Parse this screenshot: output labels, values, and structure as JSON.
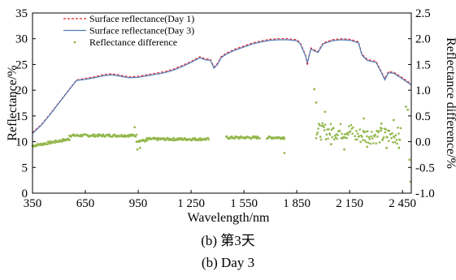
{
  "chart_data": {
    "type": "line",
    "xlabel": "Wavelength/nm",
    "ylabel": "Reflectance/%",
    "y2label": "Reflectance difference/%",
    "xlim": [
      350,
      2500
    ],
    "ylim": [
      0,
      35
    ],
    "y2lim": [
      -1.0,
      2.5
    ],
    "x_ticks": [
      350,
      650,
      950,
      1250,
      1550,
      1850,
      2150,
      2450
    ],
    "x_tick_labels": [
      "350",
      "650",
      "950",
      "1 250",
      "1 550",
      "1 850",
      "2 150",
      "2 450"
    ],
    "y_ticks": [
      0,
      5,
      10,
      15,
      20,
      25,
      30,
      35
    ],
    "y2_ticks": [
      -1.0,
      -0.5,
      0.0,
      0.5,
      1.0,
      1.5,
      2.0,
      2.5
    ],
    "y2_tick_labels": [
      "-1.0",
      "-0.5",
      "0.0",
      "0.5",
      "1.0",
      "1.5",
      "2.0",
      "2.5"
    ],
    "grid": false,
    "legend_position": "top-left",
    "series": [
      {
        "name": "Surface reflectance(Day 1)",
        "color": "#e8262b",
        "style": "dashed",
        "x": [
          350,
          400,
          450,
          500,
          550,
          600,
          650,
          700,
          750,
          800,
          850,
          900,
          950,
          1000,
          1050,
          1100,
          1150,
          1200,
          1250,
          1300,
          1330,
          1360,
          1380,
          1400,
          1420,
          1450,
          1500,
          1550,
          1600,
          1650,
          1700,
          1750,
          1800,
          1850,
          1870,
          1900,
          1910,
          1920,
          1930,
          1950,
          1970,
          2000,
          2050,
          2100,
          2150,
          2200,
          2220,
          2250,
          2300,
          2330,
          2350,
          2370,
          2400,
          2450,
          2500
        ],
        "y": [
          11.8,
          13.3,
          15.4,
          17.6,
          19.8,
          22,
          22.3,
          22.6,
          23,
          23.2,
          22.9,
          22.6,
          22.7,
          23,
          23.3,
          23.6,
          24.1,
          24.8,
          25.6,
          26.5,
          26.1,
          26,
          24.5,
          25.2,
          26.5,
          27.2,
          28,
          28.6,
          29.2,
          29.6,
          29.9,
          30,
          30,
          29.8,
          29.2,
          26.8,
          24.8,
          26.8,
          28.2,
          27.8,
          27.5,
          29.2,
          29.8,
          30,
          29.9,
          29.4,
          27,
          26,
          25.6,
          23.6,
          22.2,
          23.6,
          23.5,
          22.4,
          21.2
        ]
      },
      {
        "name": "Surface reflectance(Day 3)",
        "color": "#4f7cb8",
        "style": "solid",
        "x": [
          350,
          400,
          450,
          500,
          550,
          600,
          650,
          700,
          750,
          800,
          850,
          900,
          950,
          1000,
          1050,
          1100,
          1150,
          1200,
          1250,
          1300,
          1330,
          1360,
          1380,
          1400,
          1420,
          1450,
          1500,
          1550,
          1600,
          1650,
          1700,
          1750,
          1800,
          1850,
          1870,
          1900,
          1910,
          1920,
          1930,
          1950,
          1970,
          2000,
          2050,
          2100,
          2150,
          2200,
          2220,
          2250,
          2300,
          2330,
          2350,
          2370,
          2400,
          2450,
          2500
        ],
        "y": [
          11.6,
          13.2,
          15.3,
          17.5,
          19.7,
          21.9,
          22.1,
          22.4,
          22.8,
          23,
          22.7,
          22.4,
          22.5,
          22.8,
          23.1,
          23.4,
          23.9,
          24.6,
          25.4,
          26.3,
          25.9,
          25.8,
          24.3,
          25,
          26.3,
          27,
          27.8,
          28.4,
          29,
          29.4,
          29.7,
          29.8,
          29.8,
          29.6,
          29,
          26.6,
          25.4,
          26.6,
          28,
          27.6,
          27.3,
          29,
          29.6,
          29.8,
          29.7,
          29.2,
          26.8,
          25.8,
          25.4,
          23.4,
          22,
          23.4,
          23.3,
          22.2,
          21
        ]
      },
      {
        "name": "Reflectance difference",
        "color": "#93b84c",
        "style": "markers",
        "axis": "right",
        "segments": [
          {
            "x_start": 350,
            "x_end": 560,
            "y_start": -0.08,
            "y_end": 0.05
          },
          {
            "x_start": 560,
            "x_end": 940,
            "y_start": 0.12,
            "y_end": 0.12
          },
          {
            "x_start": 940,
            "x_end": 1000,
            "y_start": 0.02,
            "y_end": 0.02
          },
          {
            "x_start": 1000,
            "x_end": 1350,
            "y_start": 0.05,
            "y_end": 0.05
          },
          {
            "x_start": 1450,
            "x_end": 1640,
            "y_start": 0.08,
            "y_end": 0.08
          },
          {
            "x_start": 1680,
            "x_end": 1780,
            "y_start": 0.08,
            "y_end": 0.08
          },
          {
            "x_start": 1960,
            "x_end": 2170,
            "y_start": 0.2,
            "y_end": 0.2
          },
          {
            "x_start": 2180,
            "x_end": 2440,
            "y_start": 0.12,
            "y_end": 0.12
          }
        ],
        "outliers": [
          {
            "x": 930,
            "y": 0.28
          },
          {
            "x": 945,
            "y": -0.15
          },
          {
            "x": 960,
            "y": -0.12
          },
          {
            "x": 1780,
            "y": -0.22
          },
          {
            "x": 1950,
            "y": 1.02
          },
          {
            "x": 1960,
            "y": 0.76
          },
          {
            "x": 2010,
            "y": 0.58
          },
          {
            "x": 2045,
            "y": -0.05
          },
          {
            "x": 2120,
            "y": -0.15
          },
          {
            "x": 2230,
            "y": 0.45
          },
          {
            "x": 2250,
            "y": -0.1
          },
          {
            "x": 2330,
            "y": 0.35
          },
          {
            "x": 2360,
            "y": -0.12
          },
          {
            "x": 2400,
            "y": 0.42
          },
          {
            "x": 2430,
            "y": -0.12
          },
          {
            "x": 2470,
            "y": 0.68
          },
          {
            "x": 2480,
            "y": 0.62
          },
          {
            "x": 2490,
            "y": -0.35
          },
          {
            "x": 2495,
            "y": -0.78
          }
        ]
      }
    ]
  },
  "captions": {
    "line1": "(b) 第3天",
    "line2": "(b) Day 3"
  }
}
